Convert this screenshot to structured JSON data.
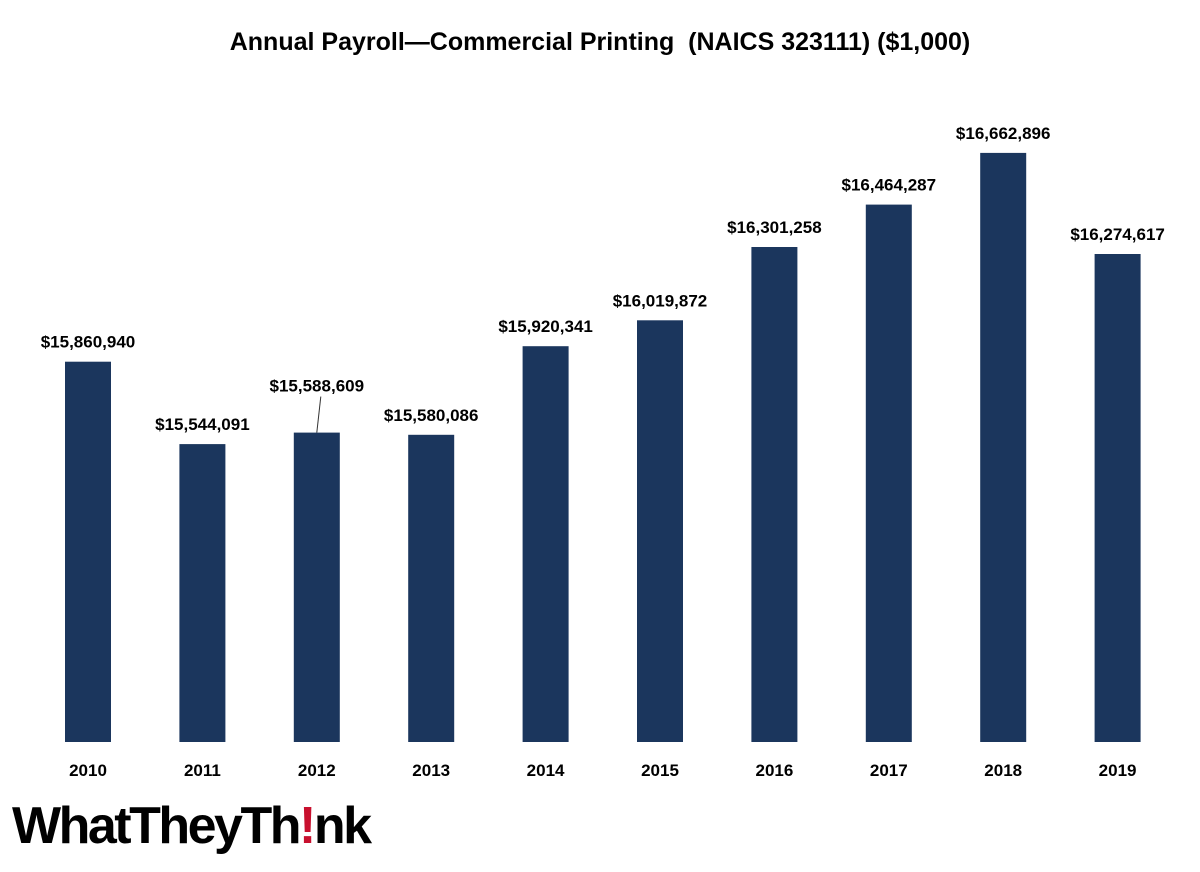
{
  "chart_data": {
    "type": "bar",
    "title": "Annual Payroll—Commercial Printing  (NAICS 323111) ($1,000)",
    "xlabel": "",
    "ylabel": "",
    "categories": [
      "2010",
      "2011",
      "2012",
      "2013",
      "2014",
      "2015",
      "2016",
      "2017",
      "2018",
      "2019"
    ],
    "values": [
      15860940,
      15544091,
      15588609,
      15580086,
      15920341,
      16019872,
      16301258,
      16464287,
      16662896,
      16274617
    ],
    "value_labels": [
      "$15,860,940",
      "$15,544,091",
      "$15,588,609",
      "$15,580,086",
      "$15,920,341",
      "$16,019,872",
      "$16,301,258",
      "$16,464,287",
      "$16,662,896",
      "$16,274,617"
    ],
    "ylim": [
      14400000,
      16720000
    ],
    "grid": false,
    "legend": "none",
    "bar_color": "#1b365d"
  },
  "logo": {
    "text_before": "WhatTheyTh",
    "mark": "!",
    "text_after": "nk",
    "mark_color": "#c8102e"
  }
}
